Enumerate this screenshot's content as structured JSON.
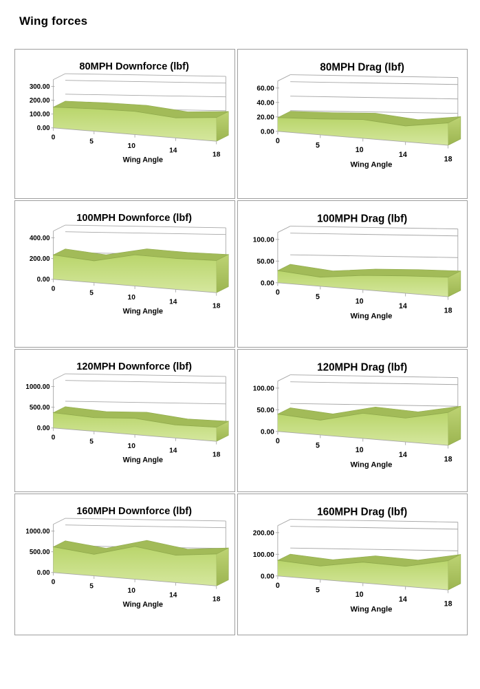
{
  "page": {
    "title": "Wing forces"
  },
  "style": {
    "area_top": "#b9d56b",
    "area_bottom": "#d5e79e",
    "band": "#a2bb58",
    "cap_top": "#bdd373",
    "cap_bottom": "#9cb551",
    "edge": "#8fa94c",
    "line": "#a6a6a6",
    "text": "#000000",
    "cell_border": "#9d9d9d"
  },
  "chart_data": [
    {
      "id": "80mph-downforce",
      "type": "area",
      "title": "80MPH Downforce (lbf)",
      "xlabel": "Wing Angle",
      "categories": [
        "0",
        "5",
        "10",
        "14",
        "18"
      ],
      "values": [
        150,
        162,
        168,
        145,
        172
      ],
      "yticks": [
        0,
        100,
        200,
        300
      ],
      "ytick_labels": [
        "0.00",
        "100.00",
        "200.00",
        "300.00"
      ],
      "ylim": [
        0,
        300
      ],
      "grid": true,
      "legend": "none"
    },
    {
      "id": "80mph-drag",
      "type": "area",
      "title": "80MPH Drag (lbf)",
      "xlabel": "Wing Angle",
      "categories": [
        "0",
        "5",
        "10",
        "14",
        "18"
      ],
      "values": [
        19,
        22,
        26,
        22,
        31
      ],
      "yticks": [
        0,
        20,
        40,
        60
      ],
      "ytick_labels": [
        "0.00",
        "20.00",
        "40.00",
        "60.00"
      ],
      "ylim": [
        0,
        60
      ],
      "grid": true,
      "legend": "none"
    },
    {
      "id": "100mph-downforce",
      "type": "area",
      "title": "100MPH Downforce (lbf)",
      "xlabel": "Wing Angle",
      "categories": [
        "0",
        "5",
        "10",
        "14",
        "18"
      ],
      "values": [
        235,
        210,
        300,
        298,
        310
      ],
      "yticks": [
        0,
        200,
        400
      ],
      "ytick_labels": [
        "0.00",
        "200.00",
        "400.00"
      ],
      "ylim": [
        0,
        400
      ],
      "grid": true,
      "legend": "none"
    },
    {
      "id": "100mph-drag",
      "type": "area",
      "title": "100MPH Drag (lbf)",
      "xlabel": "Wing Angle",
      "categories": [
        "0",
        "5",
        "10",
        "14",
        "18"
      ],
      "values": [
        28,
        21,
        33,
        40,
        45
      ],
      "yticks": [
        0,
        50,
        100
      ],
      "ytick_labels": [
        "0.00",
        "50.00",
        "100.00"
      ],
      "ylim": [
        0,
        100
      ],
      "grid": true,
      "legend": "none"
    },
    {
      "id": "120mph-downforce",
      "type": "area",
      "title": "120MPH Downforce (lbf)",
      "xlabel": "Wing Angle",
      "categories": [
        "0",
        "5",
        "10",
        "14",
        "18"
      ],
      "values": [
        370,
        330,
        395,
        315,
        340
      ],
      "yticks": [
        0,
        500,
        1000
      ],
      "ytick_labels": [
        "0.00",
        "500.00",
        "1000.00"
      ],
      "ylim": [
        0,
        1000
      ],
      "grid": true,
      "legend": "none"
    },
    {
      "id": "120mph-drag",
      "type": "area",
      "title": "120MPH Drag (lbf)",
      "xlabel": "Wing Angle",
      "categories": [
        "0",
        "5",
        "10",
        "14",
        "18"
      ],
      "values": [
        40,
        34,
        58,
        55,
        76
      ],
      "yticks": [
        0,
        50,
        100
      ],
      "ytick_labels": [
        "0.00",
        "50.00",
        "100.00"
      ],
      "ylim": [
        0,
        100
      ],
      "grid": true,
      "legend": "none"
    },
    {
      "id": "160mph-downforce",
      "type": "area",
      "title": "160MPH Downforce (lbf)",
      "xlabel": "Wing Angle",
      "categories": [
        "0",
        "5",
        "10",
        "14",
        "18"
      ],
      "values": [
        620,
        520,
        790,
        660,
        770
      ],
      "yticks": [
        0,
        500,
        1000
      ],
      "ytick_labels": [
        "0.00",
        "500.00",
        "1000.00"
      ],
      "ylim": [
        0,
        1000
      ],
      "grid": true,
      "legend": "none"
    },
    {
      "id": "160mph-drag",
      "type": "area",
      "title": "160MPH Drag (lbf)",
      "xlabel": "Wing Angle",
      "categories": [
        "0",
        "5",
        "10",
        "14",
        "18"
      ],
      "values": [
        72,
        62,
        96,
        93,
        135
      ],
      "yticks": [
        0,
        100,
        200
      ],
      "ytick_labels": [
        "0.00",
        "100.00",
        "200.00"
      ],
      "ylim": [
        0,
        200
      ],
      "grid": true,
      "legend": "none"
    }
  ]
}
